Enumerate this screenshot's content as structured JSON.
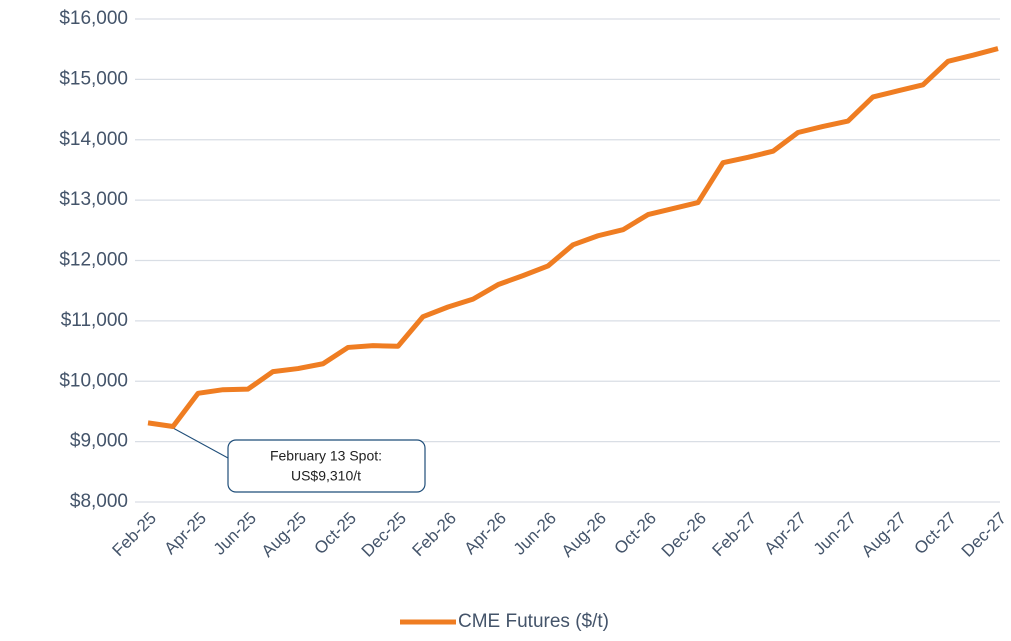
{
  "chart_data": {
    "type": "line",
    "categories": [
      "Feb-25",
      null,
      "Apr-25",
      null,
      "Jun-25",
      null,
      "Aug-25",
      null,
      "Oct-25",
      null,
      "Dec-25",
      null,
      "Feb-26",
      null,
      "Apr-26",
      null,
      "Jun-26",
      null,
      "Aug-26",
      null,
      "Oct-26",
      null,
      "Dec-26",
      null,
      "Feb-27",
      null,
      "Apr-27",
      null,
      "Jun-27",
      null,
      "Aug-27",
      null,
      "Oct-27",
      null,
      "Dec-27"
    ],
    "series": [
      {
        "name": "CME Futures ($/t)",
        "color": "#ef7d22",
        "values": [
          9310,
          9250,
          9800,
          9860,
          9870,
          10160,
          10210,
          10290,
          10560,
          10590,
          10580,
          11070,
          11230,
          11360,
          11600,
          11750,
          11910,
          12260,
          12410,
          12510,
          12760,
          12860,
          12960,
          13620,
          13710,
          13810,
          14120,
          14220,
          14310,
          14710,
          14810,
          14910,
          15300,
          15400,
          15510
        ]
      }
    ],
    "ylim": [
      8000,
      16000
    ],
    "yticks": [
      {
        "value": 8000,
        "label": "$8,000"
      },
      {
        "value": 9000,
        "label": "$9,000"
      },
      {
        "value": 10000,
        "label": "$10,000"
      },
      {
        "value": 11000,
        "label": "$11,000"
      },
      {
        "value": 12000,
        "label": "$12,000"
      },
      {
        "value": 13000,
        "label": "$13,000"
      },
      {
        "value": 14000,
        "label": "$14,000"
      },
      {
        "value": 15000,
        "label": "$15,000"
      },
      {
        "value": 16000,
        "label": "$16,000"
      }
    ],
    "grid": true,
    "legend": "bottom",
    "annotation": [
      "February 13 Spot:",
      "US$9,310/t"
    ]
  }
}
